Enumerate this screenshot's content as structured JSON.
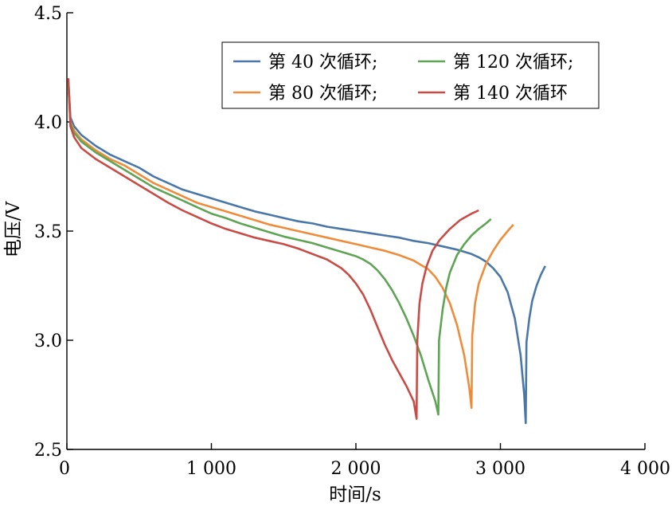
{
  "chart_data": {
    "type": "line",
    "title": "",
    "xlabel": "时间/s",
    "ylabel": "电压/V",
    "xlim": [
      0,
      4000
    ],
    "ylim": [
      2.5,
      4.5
    ],
    "x_ticks": [
      {
        "value": 0,
        "label": "0"
      },
      {
        "value": 1000,
        "label": "1 000"
      },
      {
        "value": 2000,
        "label": "2 000"
      },
      {
        "value": 3000,
        "label": "3 000"
      },
      {
        "value": 4000,
        "label": "4 000"
      }
    ],
    "y_ticks": [
      {
        "value": 2.5,
        "label": "2.5"
      },
      {
        "value": 3.0,
        "label": "3.0"
      },
      {
        "value": 3.5,
        "label": "3.5"
      },
      {
        "value": 4.0,
        "label": "4.0"
      },
      {
        "value": 4.5,
        "label": "4.5"
      }
    ],
    "grid": false,
    "legend_position": "top-right",
    "series": [
      {
        "name": "第 40 次循环;",
        "color": "#4a77a8",
        "points": [
          [
            10,
            4.19
          ],
          [
            25,
            4.02
          ],
          [
            50,
            3.98
          ],
          [
            100,
            3.94
          ],
          [
            200,
            3.89
          ],
          [
            300,
            3.85
          ],
          [
            400,
            3.82
          ],
          [
            500,
            3.79
          ],
          [
            600,
            3.75
          ],
          [
            700,
            3.72
          ],
          [
            800,
            3.69
          ],
          [
            900,
            3.67
          ],
          [
            1000,
            3.65
          ],
          [
            1100,
            3.63
          ],
          [
            1200,
            3.61
          ],
          [
            1300,
            3.59
          ],
          [
            1400,
            3.575
          ],
          [
            1500,
            3.56
          ],
          [
            1600,
            3.545
          ],
          [
            1700,
            3.535
          ],
          [
            1800,
            3.52
          ],
          [
            1900,
            3.51
          ],
          [
            2000,
            3.5
          ],
          [
            2100,
            3.49
          ],
          [
            2200,
            3.48
          ],
          [
            2300,
            3.47
          ],
          [
            2400,
            3.455
          ],
          [
            2500,
            3.445
          ],
          [
            2600,
            3.43
          ],
          [
            2700,
            3.415
          ],
          [
            2800,
            3.395
          ],
          [
            2850,
            3.38
          ],
          [
            2900,
            3.36
          ],
          [
            2950,
            3.33
          ],
          [
            3000,
            3.29
          ],
          [
            3050,
            3.22
          ],
          [
            3100,
            3.1
          ],
          [
            3140,
            2.93
          ],
          [
            3165,
            2.75
          ],
          [
            3175,
            2.62
          ],
          [
            3180,
            2.99
          ],
          [
            3200,
            3.1
          ],
          [
            3220,
            3.18
          ],
          [
            3250,
            3.25
          ],
          [
            3280,
            3.3
          ],
          [
            3310,
            3.34
          ]
        ]
      },
      {
        "name": "第 80 次循环;",
        "color": "#ef8c3c",
        "points": [
          [
            10,
            4.18
          ],
          [
            25,
            4.0
          ],
          [
            50,
            3.96
          ],
          [
            100,
            3.92
          ],
          [
            200,
            3.87
          ],
          [
            300,
            3.83
          ],
          [
            400,
            3.8
          ],
          [
            500,
            3.76
          ],
          [
            600,
            3.72
          ],
          [
            700,
            3.69
          ],
          [
            800,
            3.66
          ],
          [
            900,
            3.63
          ],
          [
            1000,
            3.61
          ],
          [
            1100,
            3.59
          ],
          [
            1200,
            3.57
          ],
          [
            1300,
            3.55
          ],
          [
            1400,
            3.53
          ],
          [
            1500,
            3.515
          ],
          [
            1600,
            3.5
          ],
          [
            1700,
            3.485
          ],
          [
            1800,
            3.47
          ],
          [
            1900,
            3.455
          ],
          [
            2000,
            3.44
          ],
          [
            2100,
            3.425
          ],
          [
            2200,
            3.41
          ],
          [
            2300,
            3.39
          ],
          [
            2400,
            3.365
          ],
          [
            2450,
            3.345
          ],
          [
            2500,
            3.325
          ],
          [
            2550,
            3.29
          ],
          [
            2600,
            3.24
          ],
          [
            2650,
            3.17
          ],
          [
            2700,
            3.07
          ],
          [
            2750,
            2.93
          ],
          [
            2785,
            2.78
          ],
          [
            2800,
            2.69
          ],
          [
            2805,
            3.02
          ],
          [
            2825,
            3.17
          ],
          [
            2850,
            3.26
          ],
          [
            2900,
            3.35
          ],
          [
            2950,
            3.41
          ],
          [
            3000,
            3.46
          ],
          [
            3050,
            3.5
          ],
          [
            3090,
            3.53
          ]
        ]
      },
      {
        "name": "第 120 次循环;",
        "color": "#5fa354",
        "points": [
          [
            10,
            4.17
          ],
          [
            25,
            3.99
          ],
          [
            50,
            3.95
          ],
          [
            100,
            3.91
          ],
          [
            200,
            3.86
          ],
          [
            300,
            3.82
          ],
          [
            400,
            3.78
          ],
          [
            500,
            3.74
          ],
          [
            600,
            3.7
          ],
          [
            700,
            3.67
          ],
          [
            800,
            3.64
          ],
          [
            900,
            3.61
          ],
          [
            1000,
            3.58
          ],
          [
            1100,
            3.56
          ],
          [
            1200,
            3.535
          ],
          [
            1300,
            3.515
          ],
          [
            1400,
            3.495
          ],
          [
            1500,
            3.475
          ],
          [
            1600,
            3.46
          ],
          [
            1700,
            3.445
          ],
          [
            1800,
            3.425
          ],
          [
            1900,
            3.405
          ],
          [
            2000,
            3.385
          ],
          [
            2050,
            3.37
          ],
          [
            2100,
            3.35
          ],
          [
            2150,
            3.32
          ],
          [
            2200,
            3.28
          ],
          [
            2250,
            3.23
          ],
          [
            2300,
            3.17
          ],
          [
            2350,
            3.1
          ],
          [
            2400,
            3.02
          ],
          [
            2450,
            2.93
          ],
          [
            2500,
            2.82
          ],
          [
            2550,
            2.72
          ],
          [
            2570,
            2.66
          ],
          [
            2575,
            3.0
          ],
          [
            2600,
            3.14
          ],
          [
            2625,
            3.24
          ],
          [
            2650,
            3.31
          ],
          [
            2700,
            3.39
          ],
          [
            2750,
            3.44
          ],
          [
            2800,
            3.48
          ],
          [
            2850,
            3.51
          ],
          [
            2900,
            3.535
          ],
          [
            2935,
            3.555
          ]
        ]
      },
      {
        "name": "第 140 次循环",
        "color": "#c84c45",
        "points": [
          [
            10,
            4.2
          ],
          [
            25,
            3.98
          ],
          [
            50,
            3.93
          ],
          [
            100,
            3.88
          ],
          [
            200,
            3.83
          ],
          [
            300,
            3.79
          ],
          [
            400,
            3.75
          ],
          [
            500,
            3.71
          ],
          [
            600,
            3.67
          ],
          [
            700,
            3.63
          ],
          [
            800,
            3.595
          ],
          [
            900,
            3.565
          ],
          [
            1000,
            3.535
          ],
          [
            1100,
            3.51
          ],
          [
            1200,
            3.49
          ],
          [
            1300,
            3.47
          ],
          [
            1400,
            3.455
          ],
          [
            1500,
            3.44
          ],
          [
            1600,
            3.42
          ],
          [
            1700,
            3.395
          ],
          [
            1800,
            3.37
          ],
          [
            1850,
            3.35
          ],
          [
            1900,
            3.33
          ],
          [
            1950,
            3.3
          ],
          [
            2000,
            3.26
          ],
          [
            2050,
            3.21
          ],
          [
            2100,
            3.14
          ],
          [
            2150,
            3.06
          ],
          [
            2200,
            2.98
          ],
          [
            2250,
            2.91
          ],
          [
            2300,
            2.85
          ],
          [
            2350,
            2.79
          ],
          [
            2400,
            2.72
          ],
          [
            2420,
            2.64
          ],
          [
            2425,
            3.0
          ],
          [
            2440,
            3.17
          ],
          [
            2460,
            3.26
          ],
          [
            2490,
            3.34
          ],
          [
            2530,
            3.41
          ],
          [
            2580,
            3.46
          ],
          [
            2650,
            3.51
          ],
          [
            2720,
            3.55
          ],
          [
            2800,
            3.58
          ],
          [
            2850,
            3.595
          ]
        ]
      }
    ]
  }
}
